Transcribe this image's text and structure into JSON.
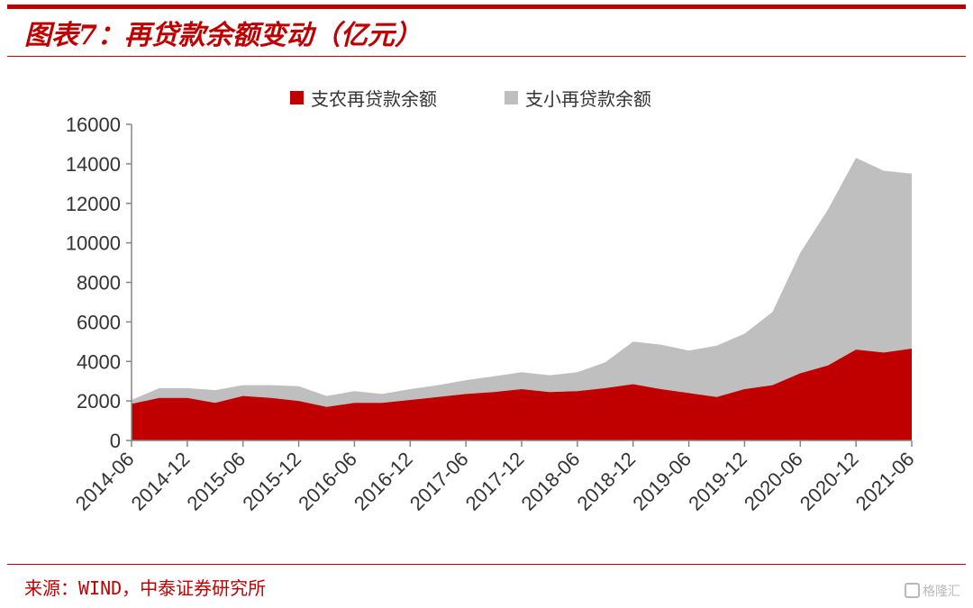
{
  "header": {
    "title": "图表7：再贷款余额变动（亿元）"
  },
  "footer": {
    "source": "来源：WIND，中泰证券研究所",
    "watermark": "格隆汇"
  },
  "colors": {
    "accent": "#c00000",
    "series_agri": "#c00000",
    "series_small": "#bfbfbf"
  },
  "chart_data": {
    "type": "area",
    "stacked": true,
    "title": "",
    "xlabel": "",
    "ylabel": "",
    "ylim": [
      0,
      16000
    ],
    "yticks": [
      0,
      2000,
      4000,
      6000,
      8000,
      10000,
      12000,
      14000,
      16000
    ],
    "grid": false,
    "legend_position": "top",
    "x": [
      "2014-06",
      "2014-09",
      "2014-12",
      "2015-03",
      "2015-06",
      "2015-09",
      "2015-12",
      "2016-03",
      "2016-06",
      "2016-09",
      "2016-12",
      "2017-03",
      "2017-06",
      "2017-09",
      "2017-12",
      "2018-03",
      "2018-06",
      "2018-09",
      "2018-12",
      "2019-03",
      "2019-06",
      "2019-09",
      "2019-12",
      "2020-03",
      "2020-06",
      "2020-09",
      "2020-12",
      "2021-03",
      "2021-06"
    ],
    "xtick_labels": [
      "2014-06",
      "2014-12",
      "2015-06",
      "2015-12",
      "2016-06",
      "2016-12",
      "2017-06",
      "2017-12",
      "2018-06",
      "2018-12",
      "2019-06",
      "2019-12",
      "2020-06",
      "2020-12",
      "2021-06"
    ],
    "series": [
      {
        "name": "支农再贷款余额",
        "color": "#c00000",
        "values": [
          1850,
          2150,
          2150,
          1900,
          2250,
          2150,
          2000,
          1700,
          1900,
          1900,
          2050,
          2200,
          2350,
          2450,
          2600,
          2450,
          2500,
          2650,
          2850,
          2600,
          2400,
          2200,
          2600,
          2800,
          3400,
          3800,
          4600,
          4450,
          4650
        ]
      },
      {
        "name": "支小再贷款余额",
        "color": "#bfbfbf",
        "values": [
          200,
          500,
          500,
          650,
          550,
          650,
          750,
          550,
          600,
          450,
          550,
          600,
          700,
          800,
          850,
          850,
          950,
          1300,
          2150,
          2250,
          2150,
          2600,
          2800,
          3700,
          6100,
          7900,
          9700,
          9200,
          8850
        ]
      }
    ]
  }
}
